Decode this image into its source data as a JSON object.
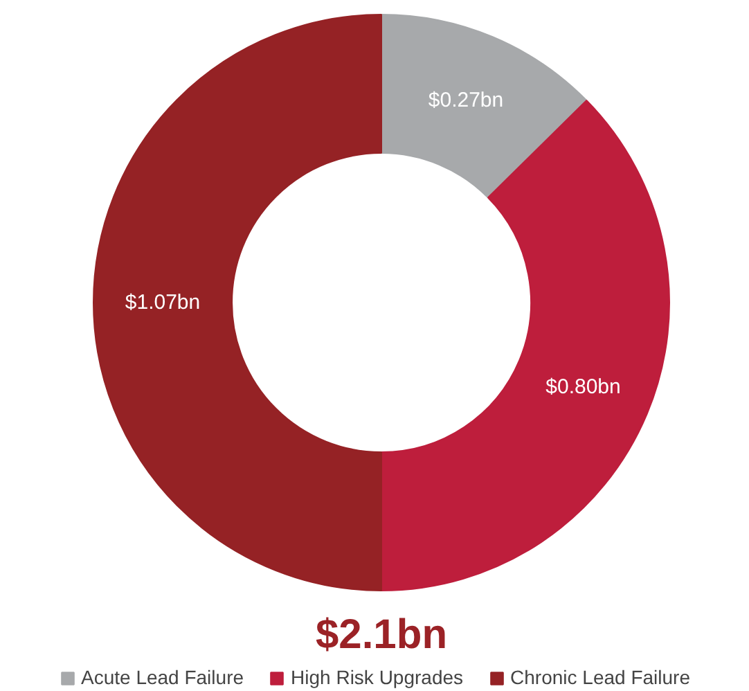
{
  "chart_data": {
    "type": "donut",
    "categories": [
      "Acute Lead Failure",
      "High Risk Upgrades",
      "Chronic Lead Failure"
    ],
    "values": [
      0.27,
      0.8,
      1.07
    ],
    "colors": [
      "#a7a9ab",
      "#be1e3c",
      "#952225"
    ],
    "value_labels": [
      "$0.27bn",
      "$0.80bn",
      "$1.07bn"
    ],
    "annotations": [
      "$2.1bn"
    ],
    "legend": "bottom"
  }
}
